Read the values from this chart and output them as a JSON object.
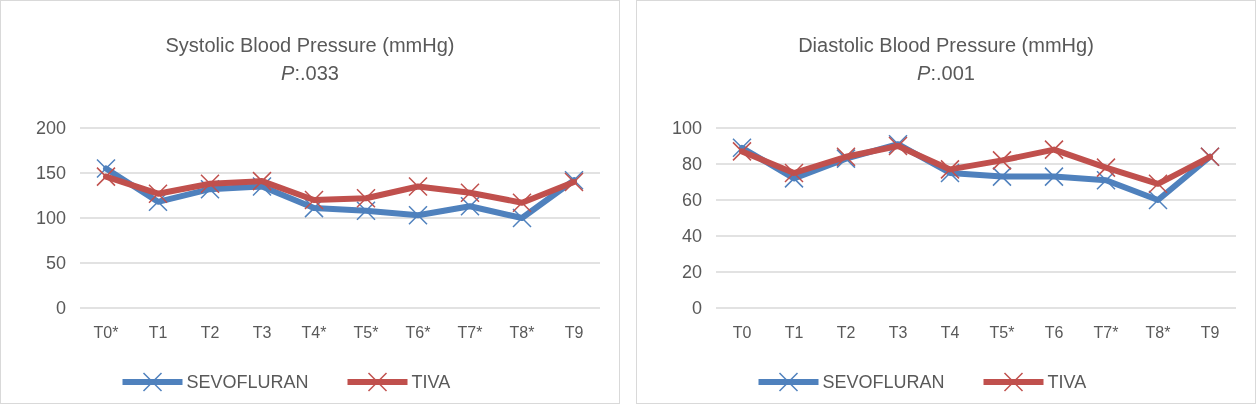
{
  "chart_data": [
    {
      "type": "line",
      "title": "Systolic Blood Pressure (mmHg)",
      "subtitle": "P:.033",
      "categories": [
        "T0*",
        "T1",
        "T2",
        "T3",
        "T4*",
        "T5*",
        "T6*",
        "T7*",
        "T8*",
        "T9"
      ],
      "series": [
        {
          "name": "SEVOFLURAN",
          "color": "#4f81bd",
          "values": [
            155,
            118,
            132,
            135,
            111,
            108,
            103,
            113,
            100,
            142
          ]
        },
        {
          "name": "TIVA",
          "color": "#c0504d",
          "values": [
            146,
            127,
            138,
            141,
            120,
            122,
            135,
            128,
            117,
            140
          ]
        }
      ],
      "ylim": [
        0,
        200
      ],
      "yticks": [
        0,
        50,
        100,
        150,
        200
      ],
      "grid": "y",
      "legend": "bottom",
      "marker": "cross",
      "line_style": "solid"
    },
    {
      "type": "line",
      "title": "Diastolic Blood Pressure (mmHg)",
      "subtitle": "P:.001",
      "categories": [
        "T0",
        "T1",
        "T2",
        "T3",
        "T4",
        "T5*",
        "T6",
        "T7*",
        "T8*",
        "T9"
      ],
      "series": [
        {
          "name": "SEVOFLURAN",
          "color": "#4f81bd",
          "values": [
            89,
            72,
            83,
            91,
            75,
            73,
            73,
            71,
            60,
            84
          ]
        },
        {
          "name": "TIVA",
          "color": "#c0504d",
          "values": [
            87,
            75,
            84,
            90,
            77,
            82,
            88,
            78,
            69,
            84
          ]
        }
      ],
      "ylim": [
        0,
        100
      ],
      "yticks": [
        0,
        20,
        40,
        60,
        80,
        100
      ],
      "grid": "y",
      "legend": "bottom",
      "marker": "cross",
      "line_style": "solid"
    }
  ]
}
